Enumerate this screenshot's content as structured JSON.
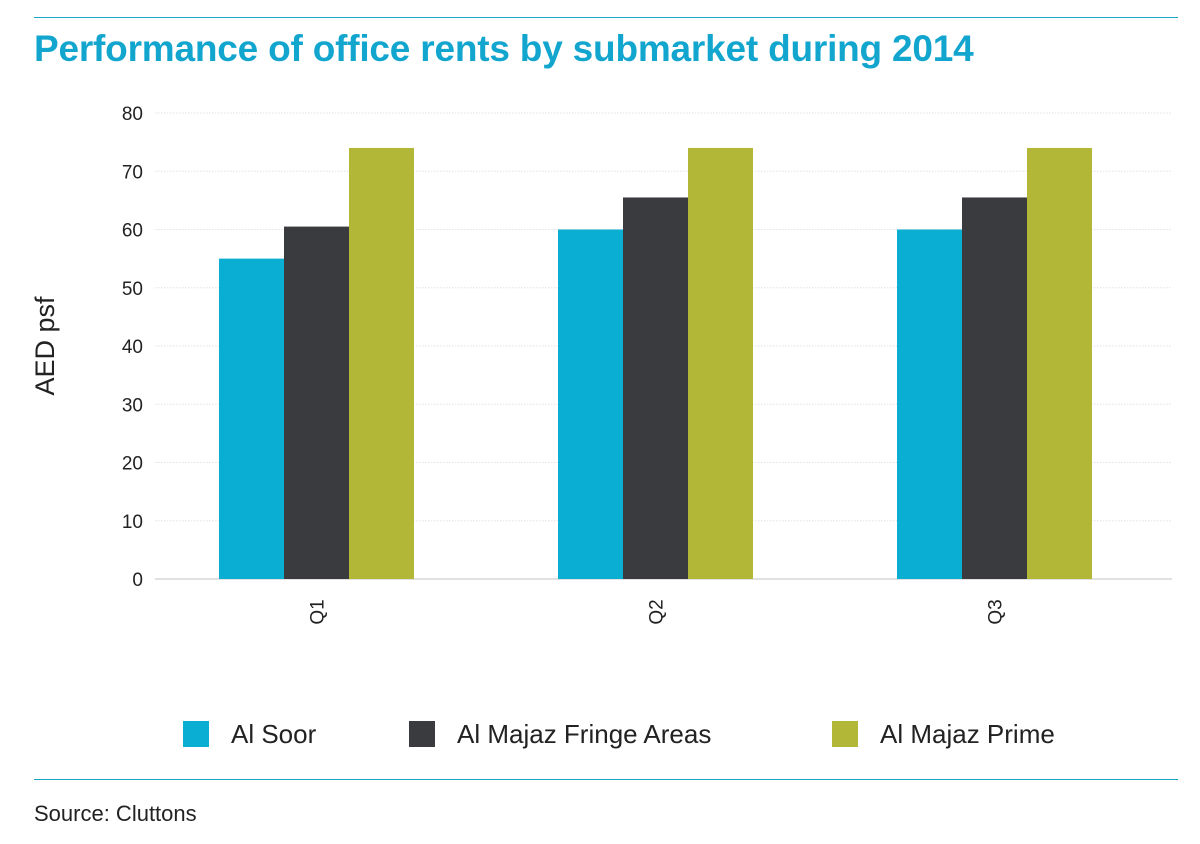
{
  "title": "Performance of office rents by submarket during 2014",
  "source": "Source: Cluttons",
  "colors": {
    "accent": "#12a6cf",
    "rule": "#1aa6c8"
  },
  "chart_data": {
    "type": "bar",
    "title": "Performance of office rents by submarket during 2014",
    "xlabel": "",
    "ylabel": "AED  psf",
    "ylim": [
      0,
      80
    ],
    "yticks": [
      0,
      10,
      20,
      30,
      40,
      50,
      60,
      70,
      80
    ],
    "grid": true,
    "legend_position": "bottom",
    "categories": [
      "Q1",
      "Q2",
      "Q3"
    ],
    "series": [
      {
        "name": "Al Soor",
        "color": "#0aaed3",
        "values": [
          55,
          60,
          60
        ]
      },
      {
        "name": "Al Majaz Fringe Areas",
        "color": "#3a3b3e",
        "values": [
          60.5,
          65.5,
          65.5
        ]
      },
      {
        "name": "Al Majaz Prime",
        "color": "#b3b737",
        "values": [
          74,
          74,
          74
        ]
      }
    ]
  }
}
